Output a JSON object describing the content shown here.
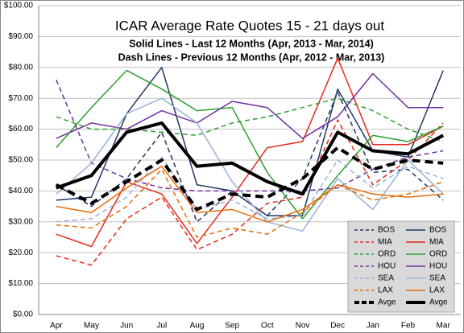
{
  "chart_data": {
    "type": "line",
    "title": "ICAR Average Rate  Quotes 15 - 21 days out",
    "subtitles": [
      "Solid Lines - Last 12 Months (Apr, 2013 - Mar, 2014)",
      "Dash Lines - Previous 12 Months (Apr, 2012 - Mar, 2013)"
    ],
    "categories": [
      "Apr",
      "May",
      "Jun",
      "Jul",
      "Aug",
      "Sep",
      "Oct",
      "Nov",
      "Dec",
      "Jan",
      "Feb",
      "Mar"
    ],
    "ylim": [
      0,
      100
    ],
    "yticks": [
      {
        "value": 0,
        "label": "$0.00"
      },
      {
        "value": 10,
        "label": "$10.00"
      },
      {
        "value": 20,
        "label": "$20.00"
      },
      {
        "value": 30,
        "label": "$30.00"
      },
      {
        "value": 40,
        "label": "$40.00"
      },
      {
        "value": 50,
        "label": "$50.00"
      },
      {
        "value": 60,
        "label": "$60.00"
      },
      {
        "value": 70,
        "label": "$70.00"
      },
      {
        "value": 80,
        "label": "$80.00"
      },
      {
        "value": 90,
        "label": "$90.00"
      },
      {
        "value": 100,
        "label": "$100.00"
      }
    ],
    "grid": true,
    "legend": "lower right",
    "series": [
      {
        "name": "BOS",
        "color": "#1f3864",
        "dashed": true,
        "line_width": 1.5,
        "values": [
          42,
          35,
          44,
          59,
          30,
          40,
          32,
          44,
          72,
          46,
          47,
          37
        ]
      },
      {
        "name": "BOS",
        "color": "#1f3864",
        "dashed": false,
        "line_width": 1.5,
        "values": [
          37,
          38,
          65,
          80,
          42,
          40,
          32,
          32,
          73,
          53,
          51,
          79
        ]
      },
      {
        "name": "MIA",
        "color": "#e8291c",
        "dashed": true,
        "line_width": 1.5,
        "values": [
          19,
          16,
          31,
          38,
          21,
          26,
          36,
          38,
          63,
          42,
          50,
          62
        ]
      },
      {
        "name": "MIA",
        "color": "#e8291c",
        "dashed": false,
        "line_width": 1.5,
        "values": [
          26,
          22,
          43,
          39,
          23,
          38,
          54,
          56,
          83,
          55,
          55,
          61
        ]
      },
      {
        "name": "ORD",
        "color": "#2ca02c",
        "dashed": true,
        "line_width": 1.5,
        "values": [
          64,
          60,
          60,
          59,
          58,
          62,
          64,
          67,
          70,
          66,
          60,
          56
        ]
      },
      {
        "name": "ORD",
        "color": "#2ca02c",
        "dashed": false,
        "line_width": 1.5,
        "values": [
          54,
          67,
          79,
          73,
          66,
          67,
          46,
          31,
          45,
          58,
          56,
          61
        ]
      },
      {
        "name": "HOU",
        "color": "#7030a0",
        "dashed": true,
        "line_width": 1.5,
        "values": [
          76,
          49,
          44,
          41,
          40,
          40,
          40,
          40,
          41,
          47,
          51,
          53
        ]
      },
      {
        "name": "HOU",
        "color": "#7030a0",
        "dashed": false,
        "line_width": 1.5,
        "values": [
          57,
          62,
          60,
          66,
          62,
          69,
          67,
          57,
          64,
          78,
          67,
          67
        ]
      },
      {
        "name": "SEA",
        "color": "#95b3d7",
        "dashed": true,
        "line_width": 1.5,
        "values": [
          30,
          31,
          38,
          51,
          34,
          37,
          31,
          32,
          50,
          41,
          48,
          44
        ]
      },
      {
        "name": "SEA",
        "color": "#95b3d7",
        "dashed": false,
        "line_width": 1.5,
        "values": [
          39,
          49,
          65,
          70,
          62,
          43,
          30,
          27,
          44,
          34,
          50,
          39
        ]
      },
      {
        "name": "LAX",
        "color": "#e46c0a",
        "dashed": true,
        "line_width": 1.5,
        "values": [
          29,
          28,
          35,
          47,
          25,
          28,
          26,
          33,
          42,
          37,
          39,
          43
        ]
      },
      {
        "name": "LAX",
        "color": "#e46c0a",
        "dashed": false,
        "line_width": 1.5,
        "values": [
          35,
          33,
          41,
          48,
          33,
          34,
          30,
          34,
          42,
          39,
          38,
          39
        ]
      },
      {
        "name": "Avge",
        "color": "#000000",
        "dashed": true,
        "line_width": 4,
        "values": [
          42,
          36,
          43,
          50,
          34,
          39,
          38,
          44,
          54,
          47,
          50,
          49
        ]
      },
      {
        "name": "Avge",
        "color": "#000000",
        "dashed": false,
        "line_width": 4,
        "values": [
          41,
          45,
          59,
          62,
          48,
          49,
          43,
          39,
          59,
          53,
          52,
          58
        ]
      }
    ]
  }
}
